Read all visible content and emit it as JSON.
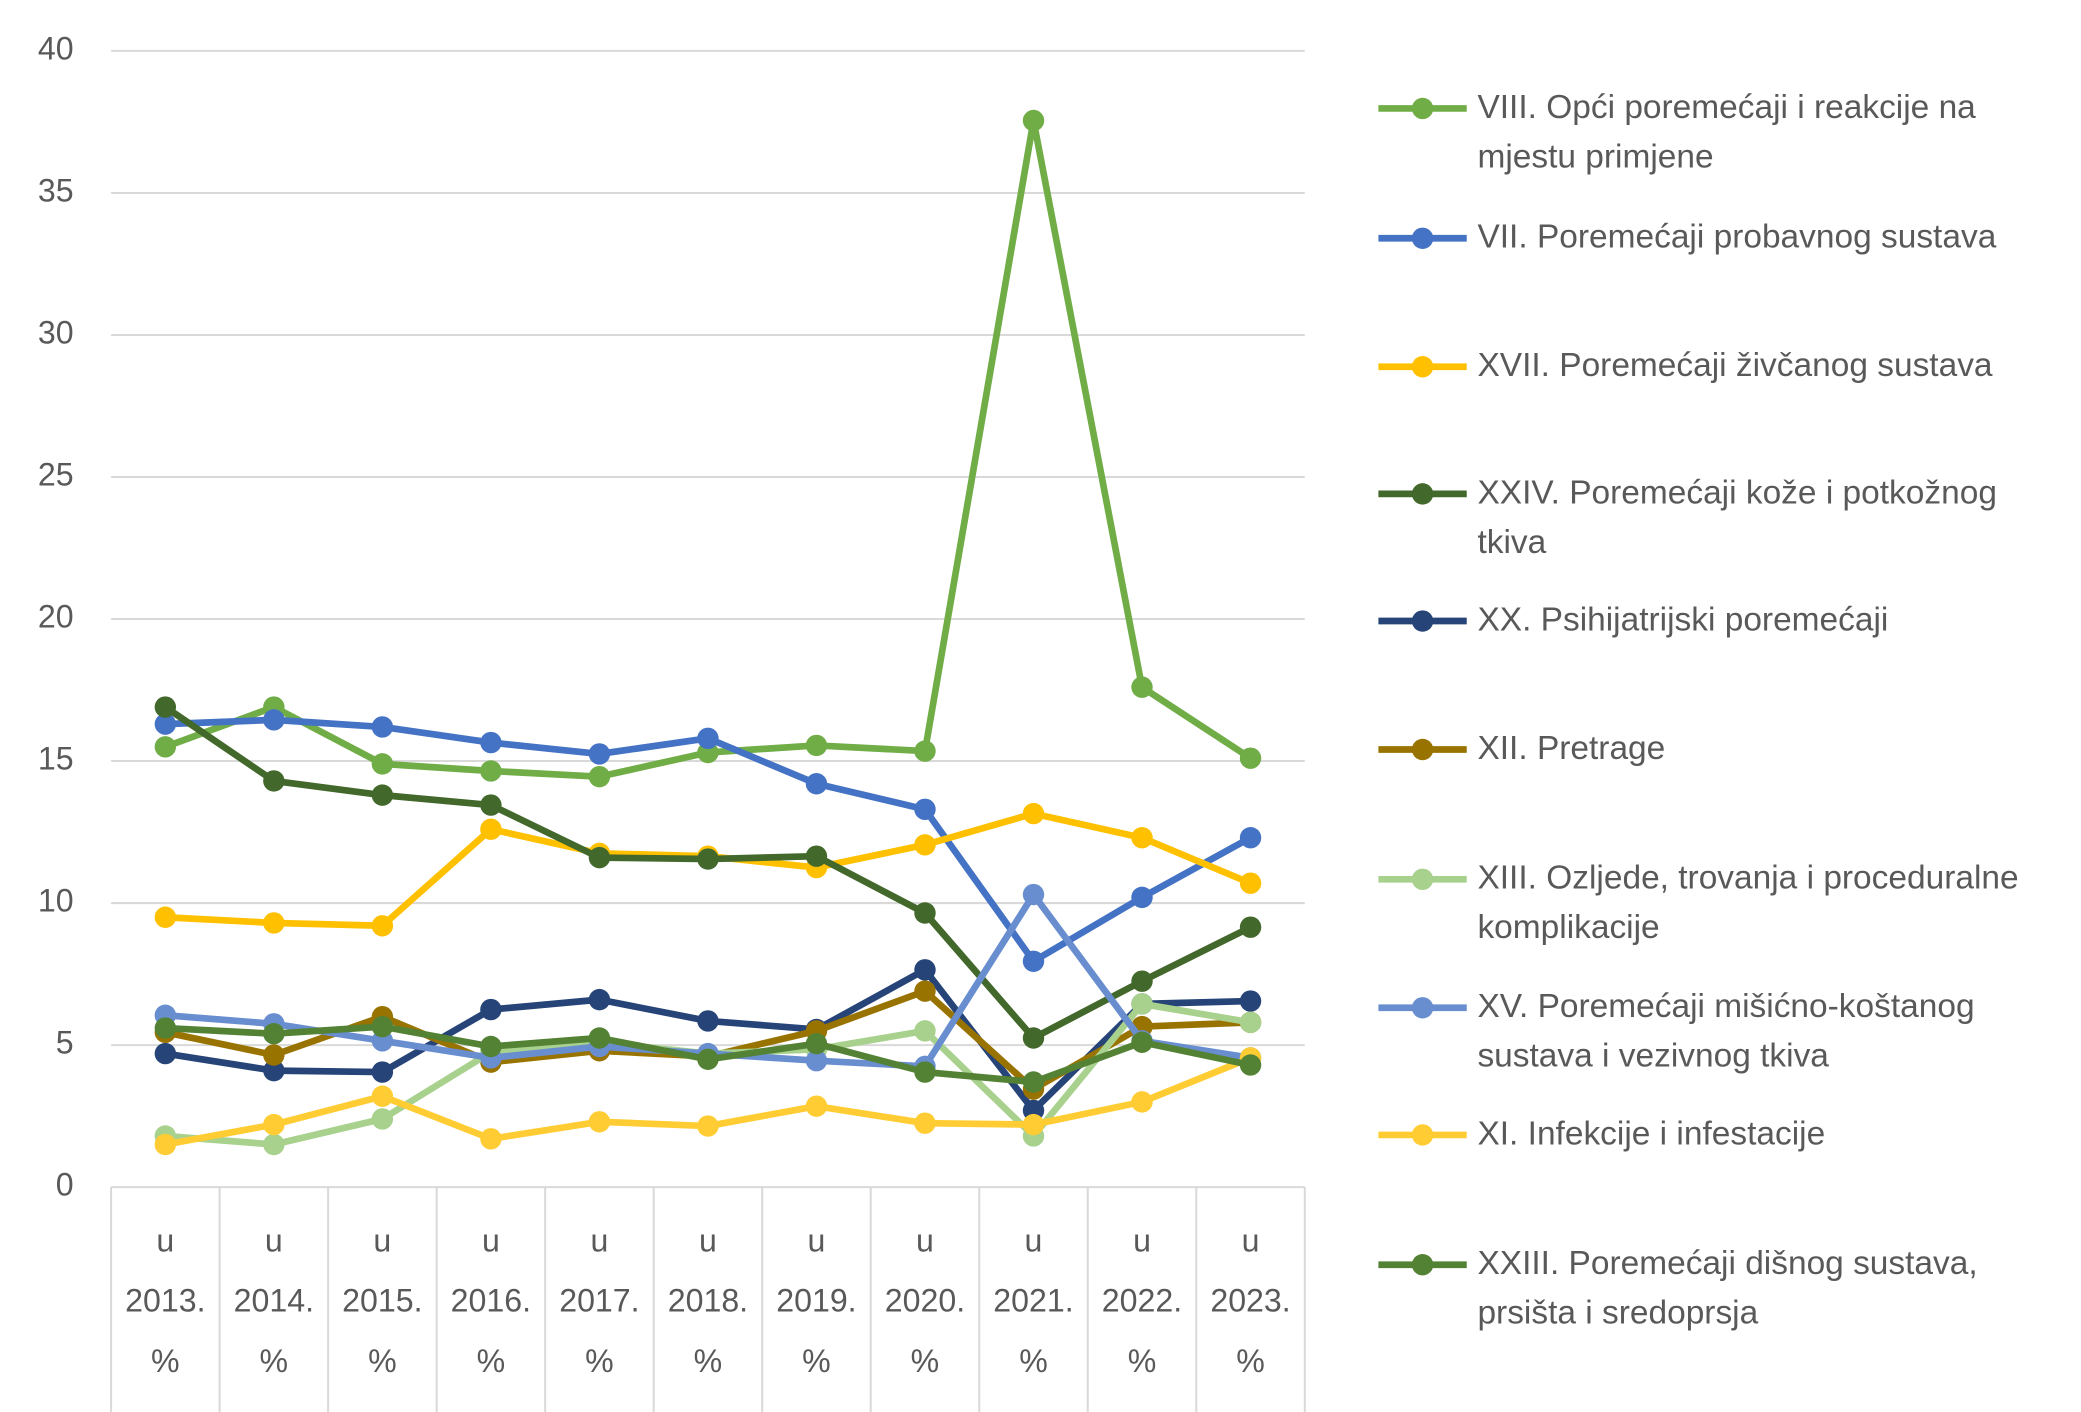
{
  "chart_data": {
    "type": "line",
    "categories": [
      "u 2013. %",
      "u 2014. %",
      "u 2015. %",
      "u 2016. %",
      "u 2017. %",
      "u 2018. %",
      "u 2019. %",
      "u 2020. %",
      "u 2021. %",
      "u 2022. %",
      "u 2023. %"
    ],
    "ylim": [
      0,
      40
    ],
    "yticks": [
      0,
      5,
      10,
      15,
      20,
      25,
      30,
      35,
      40
    ],
    "grid": true,
    "legend": "right",
    "series": [
      {
        "name": "VIII. Opći poremećaji i reakcije na mjestu primjene",
        "color": "#70ad47",
        "values": [
          15.5,
          16.9,
          14.9,
          14.65,
          14.45,
          15.3,
          15.55,
          15.35,
          37.55,
          17.6,
          15.1
        ]
      },
      {
        "name": "VII. Poremećaji probavnog sustava",
        "color": "#4472c4",
        "values": [
          16.3,
          16.45,
          16.2,
          15.65,
          15.25,
          15.8,
          14.2,
          13.3,
          7.95,
          10.2,
          12.3
        ]
      },
      {
        "name": "XVII. Poremećaji živčanog sustava",
        "color": "#ffc000",
        "values": [
          9.5,
          9.3,
          9.2,
          12.6,
          11.75,
          11.65,
          11.25,
          12.05,
          13.15,
          12.3,
          10.7
        ]
      },
      {
        "name": "XXIV. Poremećaji kože i potkožnog tkiva",
        "color": "#43682b",
        "values": [
          16.9,
          14.3,
          13.8,
          13.45,
          11.6,
          11.55,
          11.65,
          9.65,
          5.25,
          7.25,
          9.15
        ]
      },
      {
        "name": "XX. Psihijatrijski poremećaji",
        "color": "#264478",
        "values": [
          4.7,
          4.1,
          4.05,
          6.25,
          6.6,
          5.85,
          5.55,
          7.65,
          2.7,
          6.45,
          6.55
        ]
      },
      {
        "name": "XII. Pretrage",
        "color": "#997300",
        "values": [
          5.45,
          4.65,
          6.0,
          4.4,
          4.8,
          4.6,
          5.5,
          6.9,
          3.45,
          5.65,
          5.8
        ]
      },
      {
        "name": "XIII. Ozljede, trovanja i proceduralne komplikacije",
        "color": "#a9d18e",
        "values": [
          1.8,
          1.5,
          2.4,
          4.75,
          5.1,
          4.7,
          4.85,
          5.5,
          1.8,
          6.45,
          5.8
        ]
      },
      {
        "name": "XV. Poremećaji mišićno-koštanog sustava i vezivnog tkiva",
        "color": "#698ed0",
        "values": [
          6.05,
          5.75,
          5.15,
          4.55,
          4.95,
          4.7,
          4.45,
          4.25,
          10.3,
          5.15,
          4.55
        ]
      },
      {
        "name": "XI. Infekcije i infestacije",
        "color": "#ffcd33",
        "values": [
          1.5,
          2.2,
          3.2,
          1.7,
          2.3,
          2.15,
          2.85,
          2.25,
          2.2,
          3.0,
          4.55
        ]
      },
      {
        "name": "XXIII. Poremećaji dišnog sustava, prsišta i sredoprsja",
        "color": "#548235",
        "values": [
          5.6,
          5.4,
          5.65,
          4.95,
          5.25,
          4.5,
          5.05,
          4.05,
          3.7,
          5.1,
          4.3
        ]
      }
    ]
  }
}
